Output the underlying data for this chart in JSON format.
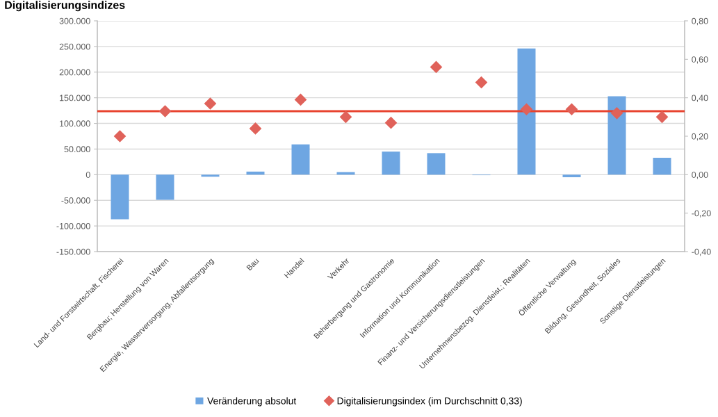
{
  "chart_data": {
    "type": "bar",
    "title": "Digitalisierungsindizes",
    "categories": [
      "Land- und Forstwirtschaft, Fischerei",
      "Bergbau; Herstellung von Waren",
      "Energie, Wasserversorgung, Abfallentsorgung",
      "Bau",
      "Handel",
      "Verkehr",
      "Beherbergung und Gastronomie",
      "Information und Kommunikation",
      "Finanz- und Versicherungsdienstleistungen",
      "Unternehmensbezog. Dienstleist.; Realitäten",
      "Öffentliche Verwaltung",
      "Bildung, Gesundheit, Soziales",
      "Sonstige Dienstleistungen"
    ],
    "series": [
      {
        "name": "Veränderung absolut",
        "color": "#6ea6e2",
        "values": [
          -87000,
          -49000,
          -4000,
          6000,
          59000,
          5000,
          45000,
          42000,
          -1000,
          246000,
          -5000,
          153000,
          33000
        ]
      },
      {
        "name": "Digitalisierungsindex (im Durchschnitt 0,33)",
        "type": "scatter",
        "axis": "y2",
        "marker": "diamond",
        "color": "#e0625a",
        "x": [
          "Land- und Forstwirtschaft, Fischerei",
          "Bergbau; Herstellung von Waren",
          "Energie, Wasserversorgung, Abfallentsorgung",
          "Bau",
          "Handel",
          "Verkehr",
          "Beherbergung und Gastronomie",
          "Information und Kommunikation",
          "Finanz- und Versicherungsdienstleistungen",
          "Unternehmensbezog. Dienstleist.; Realitäten",
          "Öffentliche Verwaltung",
          "Bildung, Gesundheit, Soziales",
          "Sonstige Dienstleistungen"
        ],
        "values": [
          0.2,
          0.33,
          0.37,
          0.24,
          0.39,
          0.3,
          0.27,
          0.56,
          0.48,
          0.34,
          0.34,
          0.32,
          0.3
        ]
      }
    ],
    "ylim": [
      -150000,
      300000
    ],
    "yticks": [
      {
        "value": -150000,
        "label": "-150.000"
      },
      {
        "value": -100000,
        "label": "-100.000"
      },
      {
        "value": -50000,
        "label": "-50.000"
      },
      0,
      {
        "value": 50000,
        "label": "50.000"
      },
      {
        "value": 100000,
        "label": "100.000"
      },
      {
        "value": 150000,
        "label": "150.000"
      },
      {
        "value": 200000,
        "label": "200.000"
      },
      {
        "value": 250000,
        "label": "250.000"
      },
      {
        "value": 300000,
        "label": "300.000"
      }
    ],
    "y2lim": [
      -0.4,
      0.8
    ],
    "y2ticks": [
      {
        "value": -0.4,
        "label": "-0,40"
      },
      {
        "value": -0.2,
        "label": "-0,20"
      },
      {
        "value": 0,
        "label": "0,00"
      },
      {
        "value": 0.2,
        "label": "0,20"
      },
      {
        "value": 0.4,
        "label": "0,40"
      },
      {
        "value": 0.6,
        "label": "0,60"
      },
      {
        "value": 0.8,
        "label": "0,80"
      }
    ],
    "ref_lines": [
      {
        "axis": "y2",
        "value": 0.33,
        "color": "#e8432f",
        "line_style": "solid"
      }
    ],
    "grid": "y",
    "legend": "bottom"
  }
}
